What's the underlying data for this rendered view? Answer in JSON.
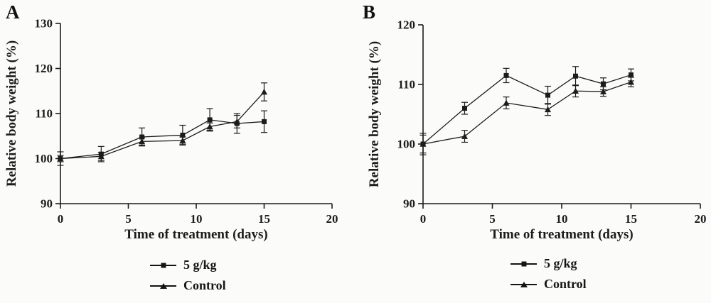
{
  "colors": {
    "ink": "#1c1c1c",
    "background": "#fbfbf9"
  },
  "chart_data": [
    {
      "panel_label": "A",
      "type": "line",
      "title": "",
      "xlabel": "Time of treatment (days)",
      "ylabel": "Relative body weight (%)",
      "xlim": [
        0,
        20
      ],
      "ylim": [
        90,
        130
      ],
      "xticks": [
        0,
        5,
        10,
        15,
        20
      ],
      "yticks": [
        90,
        100,
        110,
        120,
        130
      ],
      "x": [
        0,
        3,
        6,
        9,
        11,
        13,
        15
      ],
      "grid": false,
      "legend_position": "bottom",
      "series": [
        {
          "name": "5 g/kg",
          "marker": "square",
          "values": [
            100,
            101,
            104.8,
            105.2,
            108.6,
            107.8,
            108.2
          ],
          "errors": [
            1.5,
            1.7,
            2.0,
            2.2,
            2.5,
            2.2,
            2.4
          ]
        },
        {
          "name": "Control",
          "marker": "triangle",
          "values": [
            100,
            100.5,
            103.8,
            104.0,
            107.1,
            108.2,
            114.8
          ],
          "errors": [
            0.7,
            0.9,
            0.8,
            0.8,
            0.8,
            1.4,
            2.0
          ]
        }
      ]
    },
    {
      "panel_label": "B",
      "type": "line",
      "title": "",
      "xlabel": "Time of treatment (days)",
      "ylabel": "Relative body weight (%)",
      "xlim": [
        0,
        20
      ],
      "ylim": [
        90,
        120
      ],
      "xticks": [
        0,
        5,
        10,
        15,
        20
      ],
      "yticks": [
        90,
        100,
        110,
        120
      ],
      "x": [
        0,
        3,
        6,
        9,
        11,
        13,
        15
      ],
      "grid": false,
      "legend_position": "bottom",
      "series": [
        {
          "name": "5 g/kg",
          "marker": "square",
          "values": [
            100,
            106,
            111.5,
            108.2,
            111.4,
            110.1,
            111.6
          ],
          "errors": [
            1.5,
            1.0,
            1.2,
            1.5,
            1.6,
            1.0,
            1.0
          ]
        },
        {
          "name": "Control",
          "marker": "triangle",
          "values": [
            100,
            101.3,
            106.9,
            105.8,
            108.9,
            108.8,
            110.4
          ],
          "errors": [
            1.8,
            1.0,
            1.0,
            1.0,
            1.0,
            0.8,
            0.8
          ]
        }
      ]
    }
  ]
}
